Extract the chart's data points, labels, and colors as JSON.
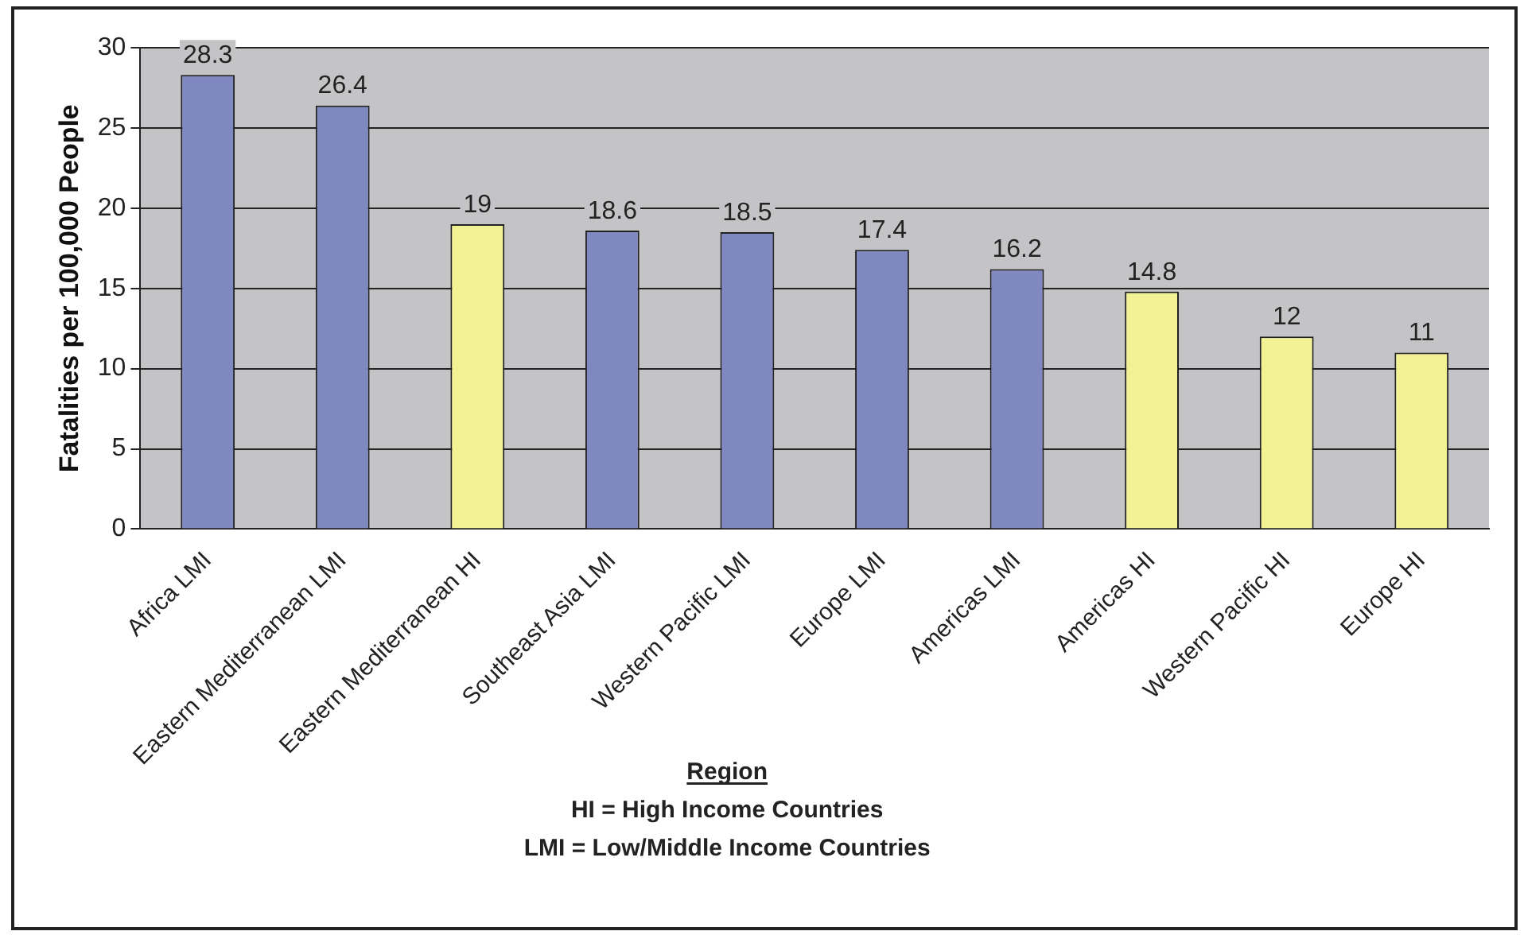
{
  "chart_data": {
    "type": "bar",
    "categories": [
      "Africa LMI",
      "Eastern Mediterranean LMI",
      "Eastern Mediterranean HI",
      "Southeast Asia LMI",
      "Western Pacific LMI",
      "Europe LMI",
      "Americas LMI",
      "Americas HI",
      "Western Pacific HI",
      "Europe HI"
    ],
    "values": [
      28.3,
      26.4,
      19,
      18.6,
      18.5,
      17.4,
      16.2,
      14.8,
      12,
      11
    ],
    "colors": [
      "#8088c2",
      "#8088c2",
      "#f2f294",
      "#8088c2",
      "#8088c2",
      "#8088c2",
      "#8088c2",
      "#f2f294",
      "#f2f294",
      "#f2f294"
    ],
    "ylim": [
      0,
      30
    ],
    "yticks": [
      0,
      5,
      10,
      15,
      20,
      25,
      30
    ],
    "grid": "y",
    "data_labels": true,
    "ylabel": "Fatalities per 100,000 People",
    "xlabel": "Region",
    "annotations": [
      "HI = High Income Countries",
      "LMI = Low/Middle Income Countries"
    ]
  }
}
